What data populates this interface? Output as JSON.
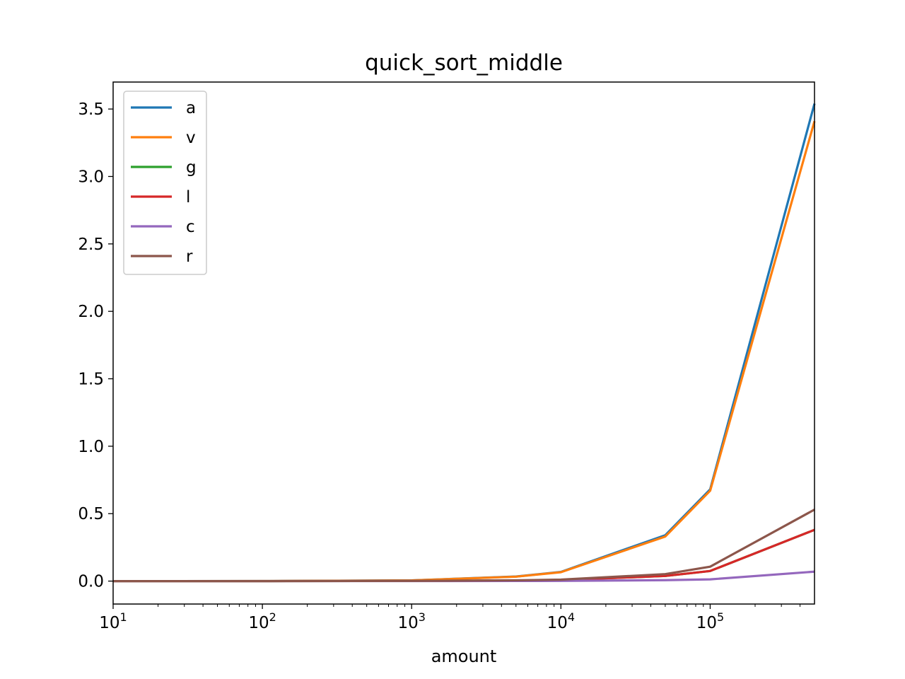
{
  "chart_data": {
    "type": "line",
    "title": "quick_sort_middle",
    "xlabel": "amount",
    "ylabel": "",
    "xscale": "log",
    "xlim": [
      10,
      500000
    ],
    "ylim": [
      -0.17,
      3.7
    ],
    "x": [
      10,
      100,
      1000,
      5000,
      10000,
      50000,
      100000,
      500000
    ],
    "x_ticks": [
      {
        "value": 10,
        "base": "10",
        "exp": "1"
      },
      {
        "value": 100,
        "base": "10",
        "exp": "2"
      },
      {
        "value": 1000,
        "base": "10",
        "exp": "3"
      },
      {
        "value": 10000,
        "base": "10",
        "exp": "4"
      },
      {
        "value": 100000,
        "base": "10",
        "exp": "5"
      }
    ],
    "y_ticks": [
      {
        "value": 0.0,
        "label": "0.0"
      },
      {
        "value": 0.5,
        "label": "0.5"
      },
      {
        "value": 1.0,
        "label": "1.0"
      },
      {
        "value": 1.5,
        "label": "1.5"
      },
      {
        "value": 2.0,
        "label": "2.0"
      },
      {
        "value": 2.5,
        "label": "2.5"
      },
      {
        "value": 3.0,
        "label": "3.0"
      },
      {
        "value": 3.5,
        "label": "3.5"
      }
    ],
    "grid": false,
    "legend_position": "upper-left",
    "series": [
      {
        "name": "a",
        "color": "#1f77b4",
        "values": [
          0.0,
          0.0003,
          0.005,
          0.034,
          0.068,
          0.34,
          0.68,
          3.54
        ]
      },
      {
        "name": "v",
        "color": "#ff7f0e",
        "values": [
          0.0,
          0.0003,
          0.005,
          0.033,
          0.066,
          0.33,
          0.67,
          3.41
        ]
      },
      {
        "name": "g",
        "color": "#2ca02c",
        "values": [
          0.0,
          0.0001,
          0.001,
          0.004,
          0.008,
          0.038,
          0.075,
          0.38
        ]
      },
      {
        "name": "l",
        "color": "#d62728",
        "values": [
          0.0,
          0.0001,
          0.001,
          0.004,
          0.008,
          0.038,
          0.075,
          0.38
        ]
      },
      {
        "name": "c",
        "color": "#9467bd",
        "values": [
          0.0,
          0.0,
          0.0002,
          0.0008,
          0.0015,
          0.007,
          0.013,
          0.07
        ]
      },
      {
        "name": "r",
        "color": "#8c564b",
        "values": [
          0.0,
          0.0001,
          0.0015,
          0.006,
          0.011,
          0.052,
          0.107,
          0.53
        ]
      }
    ]
  }
}
